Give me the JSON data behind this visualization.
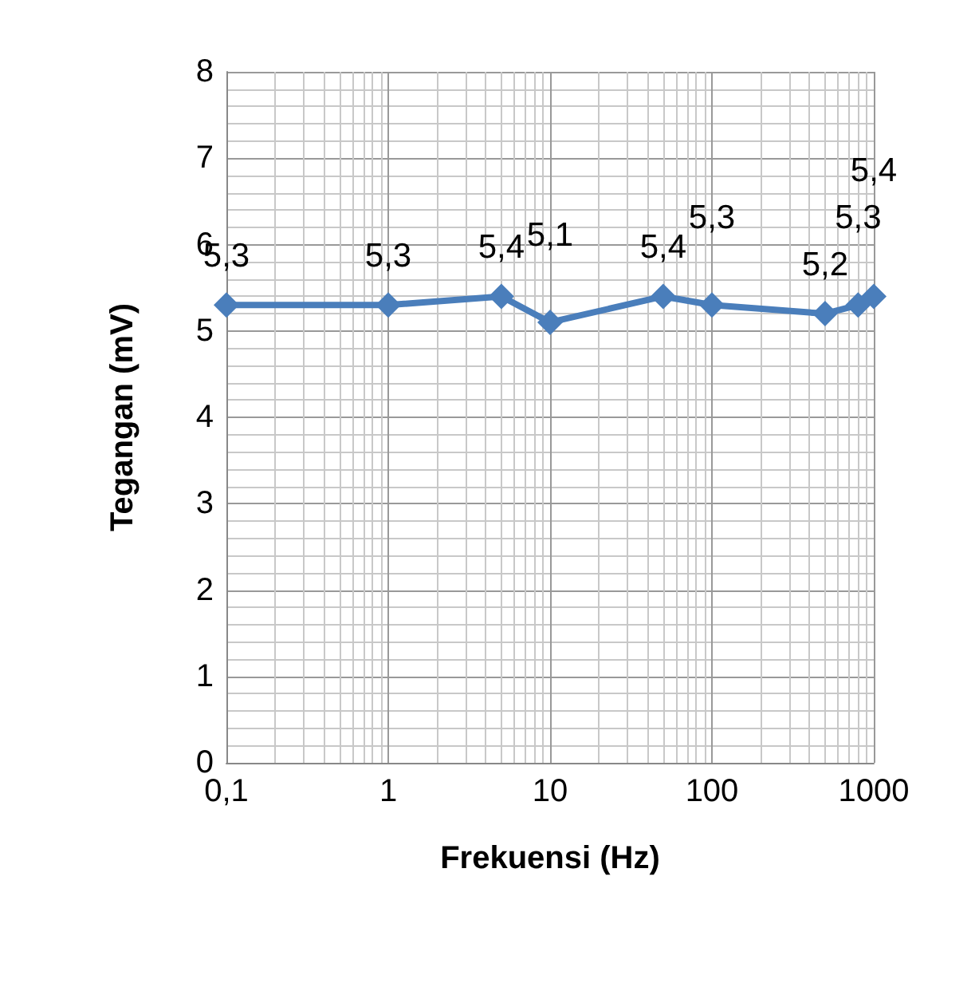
{
  "chart_data": {
    "type": "line",
    "xlabel": "Frekuensi (Hz)",
    "ylabel": "Tegangan (mV)",
    "x": [
      0.1,
      1,
      5,
      10,
      50,
      100,
      500,
      800,
      1000
    ],
    "series": [
      {
        "color": "#4a7ebb",
        "values": [
          5.3,
          5.3,
          5.4,
          5.1,
          5.4,
          5.3,
          5.2,
          5.3,
          5.4
        ],
        "value_labels": [
          "5,3",
          "5,3",
          "5,4",
          "5,1",
          "5,4",
          "5,3",
          "5,2",
          "5,3",
          "5,4"
        ]
      }
    ],
    "log": "x",
    "xlim": [
      0.1,
      1000
    ],
    "xticks": [
      {
        "value": 0.1,
        "label": "0,1"
      },
      1,
      10,
      100,
      1000
    ],
    "ylim": [
      0,
      8
    ],
    "yticks": [
      0,
      1,
      2,
      3,
      4,
      5,
      6,
      7,
      8
    ],
    "grid": true,
    "marker": "diamond"
  }
}
